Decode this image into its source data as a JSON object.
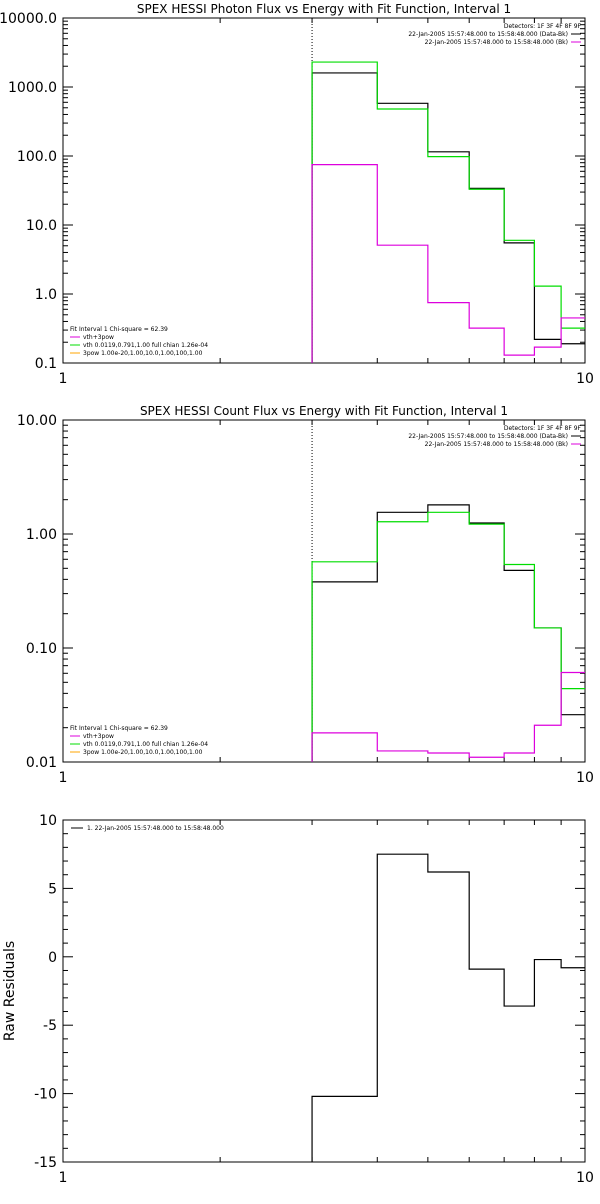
{
  "colors": {
    "black": "#000000",
    "green": "#00dd00",
    "magenta": "#dd00dd",
    "orange": "#ffa500"
  },
  "chart_data": [
    {
      "type": "line",
      "title": "SPEX HESSI Photon Flux vs Energy with Fit Function, Interval 1",
      "xlabel": "",
      "ylabel": "",
      "xscale": "log",
      "yscale": "log",
      "xlim": [
        1,
        10
      ],
      "ylim": [
        0.1,
        10000
      ],
      "xticks": [
        {
          "v": 1,
          "label": "1"
        },
        {
          "v": 10,
          "label": "10"
        }
      ],
      "yticks": [
        {
          "v": 0.1,
          "label": "0.1"
        },
        {
          "v": 1,
          "label": "1.0"
        },
        {
          "v": 10,
          "label": "10.0"
        },
        {
          "v": 100,
          "label": "100.0"
        },
        {
          "v": 1000,
          "label": "1000.0"
        },
        {
          "v": 10000,
          "label": "10000.0"
        }
      ],
      "vline": 3,
      "legend_top": {
        "position": "top-right",
        "lines": [
          {
            "text": "Detectors: 1F 3F 4F 8F 9F",
            "color": ""
          },
          {
            "text": "22-Jan-2005 15:57:48.000 to 15:58:48.000 (Data-Bk)",
            "color": "#000000"
          },
          {
            "text": "22-Jan-2005 15:57:48.000 to 15:58:48.000 (Bk)",
            "color": "#dd00dd"
          }
        ]
      },
      "legend_bottom": {
        "position": "bottom-left",
        "lines": [
          {
            "text": "Fit Interval 1    Chi-square = 62.39",
            "color": ""
          },
          {
            "text": "vth+3pow",
            "color": "#dd00dd"
          },
          {
            "text": "vth 0.0119,0.791,1.00   full chian 1.26e-04",
            "color": "#00dd00"
          },
          {
            "text": "3pow 1.00e-20,1.00,10.0,1.00,100,1.00",
            "color": "#ffa500"
          }
        ]
      },
      "series": [
        {
          "color": "#000000",
          "edges": [
            3,
            4,
            5,
            6,
            7,
            8,
            9,
            10
          ],
          "values": [
            1600,
            580,
            115,
            34,
            5.5,
            0.22,
            0.19
          ]
        },
        {
          "color": "#00dd00",
          "edges": [
            3,
            4,
            5,
            6,
            7,
            8,
            9,
            10
          ],
          "values": [
            2300,
            480,
            98,
            33,
            6.0,
            1.3,
            0.32
          ]
        },
        {
          "color": "#dd00dd",
          "edges": [
            3,
            4,
            5,
            6,
            7,
            8,
            9,
            10
          ],
          "values": [
            75,
            5.1,
            0.75,
            0.32,
            0.13,
            0.17,
            0.45
          ]
        }
      ]
    },
    {
      "type": "line",
      "title": "SPEX HESSI Count Flux vs Energy with Fit Function, Interval 1",
      "xlabel": "",
      "ylabel": "",
      "xscale": "log",
      "yscale": "log",
      "xlim": [
        1,
        10
      ],
      "ylim": [
        0.01,
        10
      ],
      "xticks": [
        {
          "v": 1,
          "label": "1"
        },
        {
          "v": 10,
          "label": "10"
        }
      ],
      "yticks": [
        {
          "v": 0.01,
          "label": "0.01"
        },
        {
          "v": 0.1,
          "label": "0.10"
        },
        {
          "v": 1,
          "label": "1.00"
        },
        {
          "v": 10,
          "label": "10.00"
        }
      ],
      "vline": 3,
      "legend_top": {
        "position": "top-right",
        "lines": [
          {
            "text": "Detectors: 1F 3F 4F 8F 9F",
            "color": ""
          },
          {
            "text": "22-Jan-2005 15:57:48.000 to 15:58:48.000 (Data-Bk)",
            "color": "#000000"
          },
          {
            "text": "22-Jan-2005 15:57:48.000 to 15:58:48.000 (Bk)",
            "color": "#dd00dd"
          }
        ]
      },
      "legend_bottom": {
        "position": "bottom-left",
        "lines": [
          {
            "text": "Fit Interval 1    Chi-square = 62.39",
            "color": ""
          },
          {
            "text": "vth+3pow",
            "color": "#dd00dd"
          },
          {
            "text": "vth 0.0119,0.791,1.00   full chian 1.26e-04",
            "color": "#00dd00"
          },
          {
            "text": "3pow 1.00e-20,1.00,10.0,1.00,100,1.00",
            "color": "#ffa500"
          }
        ]
      },
      "series": [
        {
          "color": "#000000",
          "edges": [
            3,
            4,
            5,
            6,
            7,
            8,
            9,
            10
          ],
          "values": [
            0.38,
            1.55,
            1.8,
            1.25,
            0.48,
            0.15,
            0.026
          ]
        },
        {
          "color": "#00dd00",
          "edges": [
            3,
            4,
            5,
            6,
            7,
            8,
            9,
            10
          ],
          "values": [
            0.57,
            1.28,
            1.55,
            1.22,
            0.54,
            0.15,
            0.044
          ]
        },
        {
          "color": "#dd00dd",
          "edges": [
            3,
            4,
            5,
            6,
            7,
            8,
            9,
            10
          ],
          "values": [
            0.018,
            0.0125,
            0.012,
            0.011,
            0.012,
            0.021,
            0.061
          ]
        }
      ]
    },
    {
      "type": "line",
      "title": "",
      "xlabel": "",
      "ylabel": "Raw Residuals",
      "xscale": "log",
      "yscale": "linear",
      "xlim": [
        1,
        10
      ],
      "ylim": [
        -15,
        10
      ],
      "xticks": [
        {
          "v": 1,
          "label": "1"
        },
        {
          "v": 10,
          "label": "10"
        }
      ],
      "yticks": [
        {
          "v": -15,
          "label": "-15"
        },
        {
          "v": -10,
          "label": "-10"
        },
        {
          "v": -5,
          "label": "-5"
        },
        {
          "v": 0,
          "label": "0"
        },
        {
          "v": 5,
          "label": "5"
        },
        {
          "v": 10,
          "label": "10"
        }
      ],
      "legend_top": {
        "position": "top-left",
        "lines": [
          {
            "text": "1. 22-Jan-2005 15:57:48.000 to 15:58:48.000",
            "color": "#000000"
          }
        ]
      },
      "series": [
        {
          "color": "#000000",
          "edges": [
            3,
            4,
            5,
            6,
            7,
            8,
            9,
            10
          ],
          "values": [
            -10.2,
            7.5,
            6.2,
            -0.9,
            -3.6,
            -0.2,
            -0.8
          ],
          "leading_drop_to": -15
        }
      ]
    }
  ]
}
